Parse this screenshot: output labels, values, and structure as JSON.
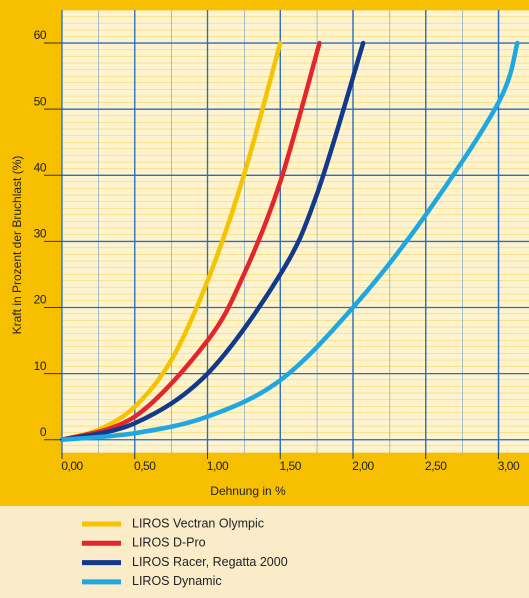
{
  "chart_data": {
    "type": "line",
    "xlabel": "Dehnung in %",
    "ylabel": "Kraft in Prozent der Bruchlast (%)",
    "xlim": [
      0,
      3.21
    ],
    "ylim": [
      -2,
      65
    ],
    "xticks": [
      {
        "value": 0,
        "label": "0,00"
      },
      {
        "value": 0.5,
        "label": "0,50"
      },
      {
        "value": 1,
        "label": "1,00"
      },
      {
        "value": 1.5,
        "label": "1,50"
      },
      {
        "value": 2,
        "label": "2,00"
      },
      {
        "value": 2.5,
        "label": "2,50"
      },
      {
        "value": 3,
        "label": "3,00"
      }
    ],
    "yticks": [
      0,
      10,
      20,
      30,
      40,
      50,
      60
    ],
    "grid": true,
    "series": [
      {
        "name": "LIROS Vectran Olympic",
        "color": "#f5c400",
        "x": [
          0,
          0.25,
          0.5,
          0.75,
          1.0,
          1.25,
          1.5
        ],
        "values": [
          0,
          1.5,
          5,
          12,
          24,
          40,
          60
        ]
      },
      {
        "name": "LIROS D-Pro",
        "color": "#e3262b",
        "x": [
          0,
          0.5,
          1.0,
          1.25,
          1.5,
          1.77
        ],
        "values": [
          0,
          3.5,
          15,
          25,
          39,
          60
        ]
      },
      {
        "name": "LIROS Racer, Regatta 2000",
        "color": "#123a8c",
        "x": [
          0,
          0.5,
          1.0,
          1.5,
          1.75,
          2.07
        ],
        "values": [
          0,
          2.5,
          10,
          25,
          37,
          60
        ]
      },
      {
        "name": "LIROS Dynamic",
        "color": "#1ea7e0",
        "x": [
          0,
          0.5,
          1.0,
          1.5,
          2.0,
          2.5,
          3.0,
          3.13
        ],
        "values": [
          0,
          1,
          3.5,
          9,
          20,
          34,
          51,
          60
        ]
      }
    ]
  }
}
